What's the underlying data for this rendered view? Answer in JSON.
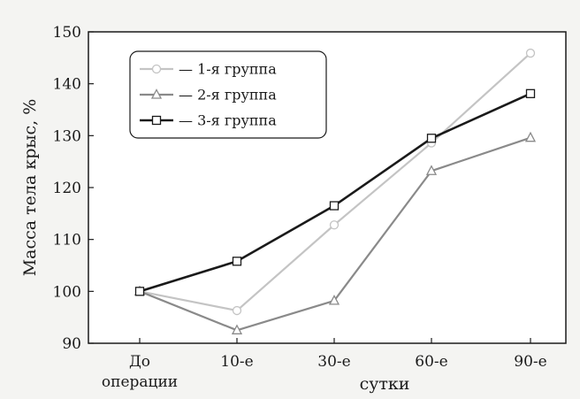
{
  "chart_data": {
    "type": "line",
    "title": "",
    "xlabel": "сутки",
    "ylabel": "Масса тела крыс, %",
    "categories": [
      "До\nоперации",
      "10-е",
      "30-е",
      "60-е",
      "90-е"
    ],
    "ylim": [
      90,
      150
    ],
    "yticks": [
      90,
      100,
      110,
      120,
      130,
      140,
      150
    ],
    "grid": false,
    "legend_position": "top-left",
    "series": [
      {
        "name": "— 1-я группа",
        "marker": "circle",
        "color": "#c4c4c4",
        "values": [
          100,
          96.3,
          112.8,
          128.6,
          145.9
        ]
      },
      {
        "name": "— 2-я группа",
        "marker": "triangle",
        "color": "#8a8a8a",
        "values": [
          100,
          92.5,
          98.2,
          123.2,
          129.6
        ]
      },
      {
        "name": "— 3-я группа",
        "marker": "square",
        "color": "#1a1a1a",
        "values": [
          100,
          105.8,
          116.5,
          129.5,
          138.1
        ]
      }
    ]
  }
}
